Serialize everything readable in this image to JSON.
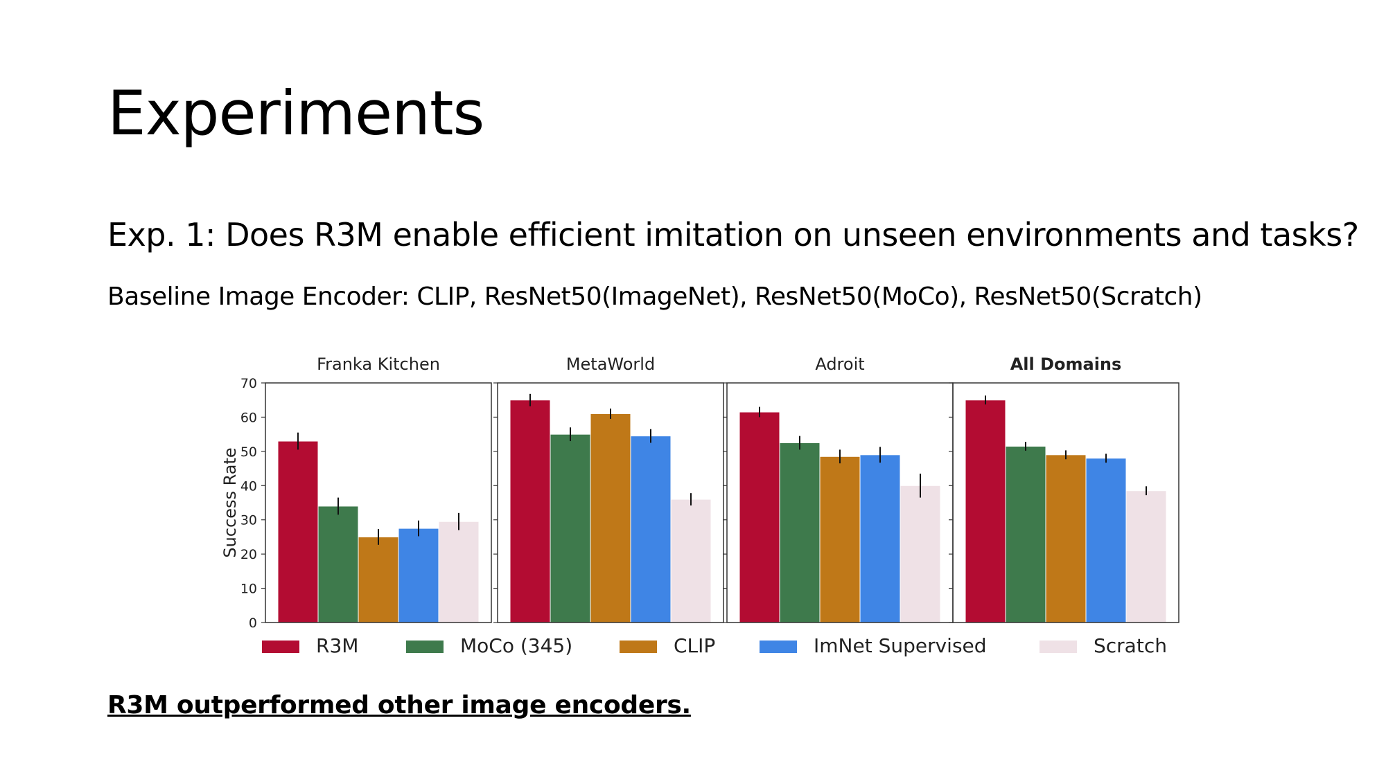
{
  "slide": {
    "title": "Experiments",
    "question": "Exp. 1: Does R3M enable efficient imitation on unseen environments and tasks?",
    "baseline": "Baseline Image Encoder: CLIP, ResNet50(ImageNet), ResNet50(MoCo), ResNet50(Scratch)",
    "conclusion": "R3M outperformed other image encoders."
  },
  "chart_data": {
    "type": "bar",
    "ylabel": "Success Rate",
    "ylim": [
      0,
      70
    ],
    "yticks": [
      0,
      10,
      20,
      30,
      40,
      50,
      60,
      70
    ],
    "legend_position": "bottom",
    "series": [
      {
        "name": "R3M",
        "color": "#b30c32"
      },
      {
        "name": "MoCo (345)",
        "color": "#3e7a4c"
      },
      {
        "name": "CLIP",
        "color": "#bf7818"
      },
      {
        "name": "ImNet Supervised",
        "color": "#3f85e5"
      },
      {
        "name": "Scratch",
        "color": "#efe1e6"
      }
    ],
    "panels": [
      {
        "title": "Franka Kitchen",
        "bold": false,
        "values": [
          53,
          34,
          25,
          27.5,
          29.5
        ],
        "errors": [
          2.5,
          2.5,
          2.3,
          2.3,
          2.5
        ]
      },
      {
        "title": "MetaWorld",
        "bold": false,
        "values": [
          65,
          55,
          61,
          54.5,
          36
        ],
        "errors": [
          1.8,
          2.0,
          1.5,
          2.0,
          1.8
        ]
      },
      {
        "title": "Adroit",
        "bold": false,
        "values": [
          61.5,
          52.5,
          48.5,
          49,
          40
        ],
        "errors": [
          1.5,
          2.0,
          2.0,
          2.3,
          3.5
        ]
      },
      {
        "title": "All Domains",
        "bold": true,
        "values": [
          65,
          51.5,
          49,
          48,
          38.5
        ],
        "errors": [
          1.3,
          1.3,
          1.3,
          1.3,
          1.3
        ]
      }
    ]
  }
}
